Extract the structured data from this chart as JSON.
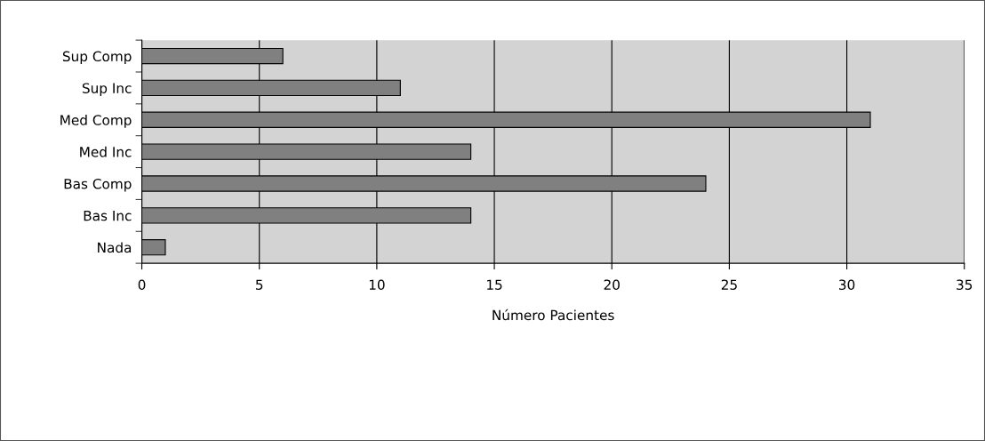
{
  "chart_data": {
    "type": "bar",
    "orientation": "horizontal",
    "categories": [
      "Sup Comp",
      "Sup Inc",
      "Med Comp",
      "Med Inc",
      "Bas Comp",
      "Bas Inc",
      "Nada"
    ],
    "values": [
      6,
      11,
      31,
      14,
      24,
      14,
      1
    ],
    "color": "#808080",
    "xlabel": "Número Pacientes",
    "xlim": [
      0,
      35
    ],
    "xticks": [
      0,
      5,
      10,
      15,
      20,
      25,
      30,
      35
    ],
    "grid": "x"
  }
}
